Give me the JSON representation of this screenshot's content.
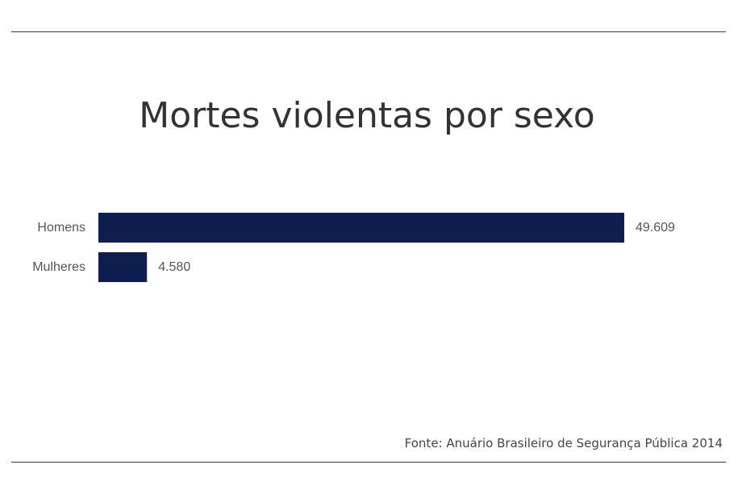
{
  "chart_data": {
    "type": "bar",
    "orientation": "horizontal",
    "title": "Mortes violentas por sexo",
    "categories": [
      "Homens",
      "Mulheres"
    ],
    "values": [
      49609,
      4580
    ],
    "value_labels": [
      "49.609",
      "4.580"
    ],
    "xlabel": "",
    "ylabel": "",
    "xlim": [
      0,
      49609
    ],
    "grid": false,
    "legend": "none",
    "bar_color": "#0e1f4f"
  },
  "source": "Fonte: Anuário Brasileiro de Segurança Pública 2014"
}
